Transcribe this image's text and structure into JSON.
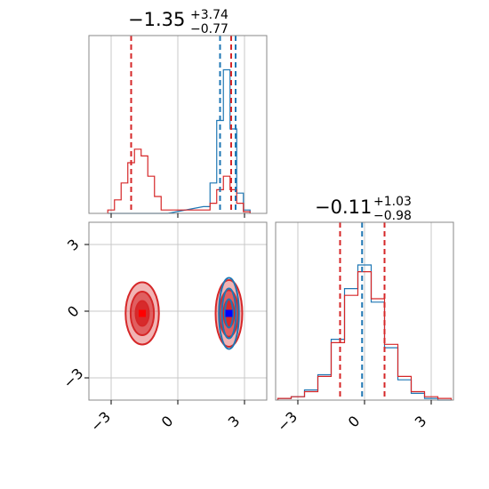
{
  "chart_data": {
    "type": "corner",
    "parameters": [
      {
        "title": {
          "median": "−1.35",
          "plus": "+3.74",
          "minus": "−0.77"
        },
        "ticks": [
          -3,
          0,
          3
        ],
        "tick_labels": [
          "−3",
          "0",
          "3"
        ],
        "xlim": [
          -4,
          4
        ],
        "quantiles": {
          "red": [
            -2.1,
            2.4
          ],
          "blue": [
            1.9,
            2.4,
            2.6
          ]
        }
      },
      {
        "title": {
          "median": "−0.11",
          "plus": "+1.03",
          "minus": "−0.98"
        },
        "ticks": [
          -3,
          0,
          3
        ],
        "tick_labels": [
          "−3",
          "0",
          "3"
        ],
        "xlim": [
          -4,
          4
        ],
        "quantiles": {
          "red": [
            -1.1,
            0.9
          ],
          "blue": [
            -1.1,
            -0.11,
            0.9
          ]
        }
      }
    ],
    "marginal_x": [
      {
        "x": [
          -3.0,
          -2.7,
          -2.4,
          -2.1,
          -1.8,
          -1.5,
          -1.2,
          -0.9,
          -0.6,
          1.3,
          1.6,
          1.9,
          2.2,
          2.5,
          2.8,
          3.1
        ],
        "red": [
          0.02,
          0.08,
          0.18,
          0.3,
          0.38,
          0.34,
          0.22,
          0.1,
          0.02,
          0.02,
          0.06,
          0.14,
          0.22,
          0.14,
          0.06,
          0.01
        ],
        "blue": [
          0,
          0,
          0,
          0,
          0,
          0,
          0,
          0,
          0,
          0.04,
          0.18,
          0.55,
          0.85,
          0.5,
          0.12,
          0.02
        ]
      }
    ],
    "marginal_y": [
      {
        "x": [
          -3.6,
          -3.0,
          -2.4,
          -1.8,
          -1.2,
          -0.6,
          0.0,
          0.6,
          1.2,
          1.8,
          2.4,
          3.0,
          3.6
        ],
        "red": [
          0.01,
          0.02,
          0.05,
          0.14,
          0.34,
          0.62,
          0.76,
          0.6,
          0.33,
          0.14,
          0.05,
          0.02,
          0.01
        ],
        "blue": [
          0.01,
          0.02,
          0.06,
          0.15,
          0.36,
          0.66,
          0.8,
          0.58,
          0.31,
          0.12,
          0.04,
          0.01,
          0.0
        ]
      }
    ],
    "joint": {
      "modes": [
        {
          "x": -1.6,
          "y": -0.1,
          "sx": 0.75,
          "sy": 1.4,
          "color": "red"
        },
        {
          "x": 2.3,
          "y": -0.1,
          "sx": 0.6,
          "sy": 1.5,
          "color": "red"
        },
        {
          "x": 2.3,
          "y": -0.1,
          "sx": 0.45,
          "sy": 1.6,
          "color": "blue"
        }
      ],
      "markers": [
        {
          "x": -1.6,
          "y": -0.1,
          "color": "red"
        },
        {
          "x": 2.3,
          "y": -0.1,
          "color": "blue"
        }
      ]
    },
    "colors": {
      "red": "#d62728",
      "blue": "#1f77b4"
    },
    "grid": true
  }
}
